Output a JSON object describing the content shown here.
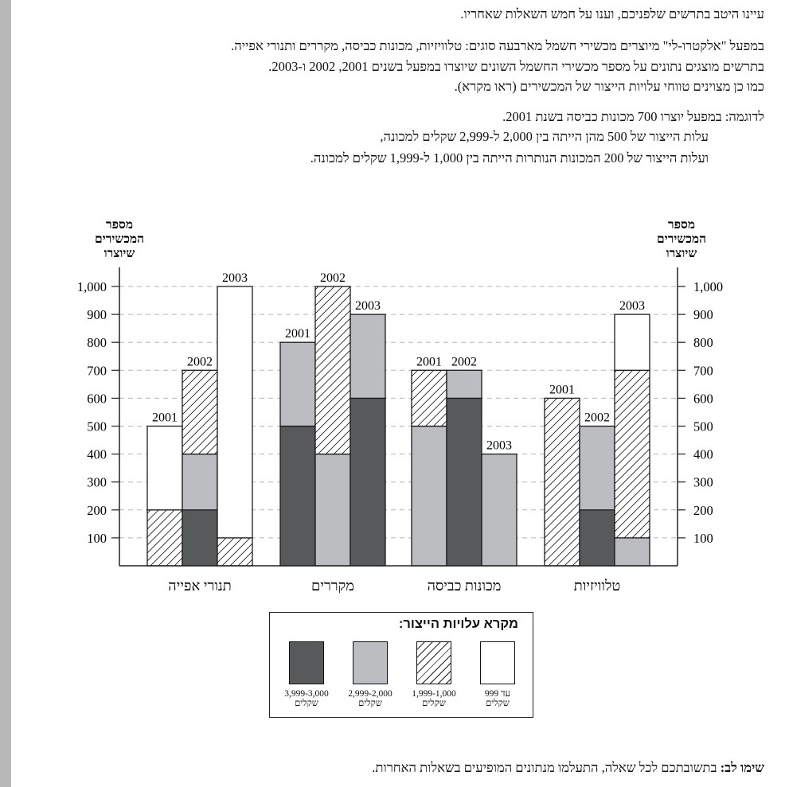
{
  "intro": "עיינו היטב בתרשים שלפניכם, וענו על חמש השאלות שאחריו.",
  "paragraph_lines": [
    "במפעל \"אלקטרו-לי\" מיוצרים מכשירי חשמל מארבעה סוגים: טלוויזיות, מכונות כביסה, מקררים ותנורי אפייה.",
    "בתרשים מוצגים נתונים על מספר מכשירי החשמל השונים שיוצרו במפעל בשנים 2001, 2002 ו-2003.",
    "כמו כן מצוינים טווחי עלויות הייצור של המכשירים (ראו מקרא)."
  ],
  "example_lines": [
    "לדוגמה:  במפעל יוצרו 700 מכונות כביסה בשנת 2001.",
    "עלות הייצור של 500 מהן הייתה בין 2,000 ל-2,999 שקלים למכונה,",
    "ועלות הייצור של 200 המכונות הנותרות הייתה בין 1,000 ל-1,999 שקלים למכונה."
  ],
  "note": {
    "bold": "שימו לב:",
    "text": " בתשובתכם לכל שאלה, התעלמו מנתונים המופיעים בשאלות האחרות."
  },
  "chart_data": {
    "type": "bar",
    "stacked": true,
    "y_axis_title_lines": [
      "מספר",
      "המכשירים",
      "שיוצרו"
    ],
    "y_ticks": [
      "100",
      "200",
      "300",
      "400",
      "500",
      "600",
      "700",
      "800",
      "900",
      "1,000"
    ],
    "ylim": [
      0,
      1000
    ],
    "grid": "dashed horizontal",
    "groups": [
      {
        "label": "טלוויזיות",
        "bars": [
          {
            "year": "2001",
            "segments": {
              "3000-3999": 0,
              "2000-2999": 0,
              "1000-1999": 600,
              "0-999": 0
            }
          },
          {
            "year": "2002",
            "segments": {
              "3000-3999": 200,
              "2000-2999": 300,
              "1000-1999": 0,
              "0-999": 0
            }
          },
          {
            "year": "2003",
            "segments": {
              "3000-3999": 0,
              "2000-2999": 100,
              "1000-1999": 600,
              "0-999": 200
            }
          }
        ]
      },
      {
        "label": "מכונות כביסה",
        "bars": [
          {
            "year": "2001",
            "segments": {
              "3000-3999": 0,
              "2000-2999": 500,
              "1000-1999": 200,
              "0-999": 0
            }
          },
          {
            "year": "2002",
            "segments": {
              "3000-3999": 600,
              "2000-2999": 100,
              "1000-1999": 0,
              "0-999": 0
            }
          },
          {
            "year": "2003",
            "segments": {
              "3000-3999": 0,
              "2000-2999": 400,
              "1000-1999": 0,
              "0-999": 0
            }
          }
        ]
      },
      {
        "label": "מקררים",
        "bars": [
          {
            "year": "2001",
            "segments": {
              "3000-3999": 500,
              "2000-2999": 300,
              "1000-1999": 0,
              "0-999": 0
            }
          },
          {
            "year": "2002",
            "segments": {
              "3000-3999": 0,
              "2000-2999": 400,
              "1000-1999": 600,
              "0-999": 0
            }
          },
          {
            "year": "2003",
            "segments": {
              "3000-3999": 600,
              "2000-2999": 300,
              "1000-1999": 0,
              "0-999": 0
            }
          }
        ]
      },
      {
        "label": "תנורי אפייה",
        "bars": [
          {
            "year": "2001",
            "segments": {
              "3000-3999": 0,
              "2000-2999": 0,
              "1000-1999": 200,
              "0-999": 300
            }
          },
          {
            "year": "2002",
            "segments": {
              "3000-3999": 200,
              "2000-2999": 200,
              "1000-1999": 300,
              "0-999": 0
            }
          },
          {
            "year": "2003",
            "segments": {
              "3000-3999": 0,
              "2000-2999": 0,
              "1000-1999": 100,
              "0-999": 900
            }
          }
        ]
      }
    ],
    "legend": {
      "title": "מקרא עלויות הייצור:",
      "items": [
        {
          "key": "3000-3999",
          "range": "3,999-3,000",
          "unit": "שקלים",
          "fill": "#58595b"
        },
        {
          "key": "2000-2999",
          "range": "2,999-2,000",
          "unit": "שקלים",
          "fill": "#bcbdc0"
        },
        {
          "key": "1000-1999",
          "range": "1,999-1,000",
          "unit": "שקלים",
          "fill": "hatch"
        },
        {
          "key": "0-999",
          "range": "עד 999",
          "unit": "שקלים",
          "fill": "#ffffff"
        }
      ]
    }
  }
}
